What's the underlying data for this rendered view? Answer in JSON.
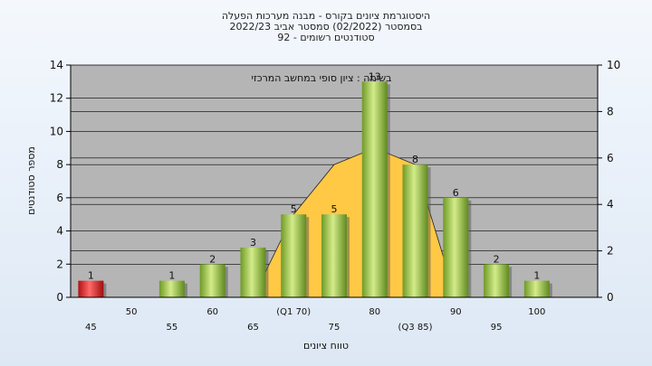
{
  "chart_data": {
    "type": "bar",
    "title_lines": [
      "היסטוגרמת ציונים בקורס - מבנה מערכות הפעלה",
      "בסמסטר  (02/2022)  סמסטר אביב 2022/23",
      "סטודנטים רשומים - 92"
    ],
    "xlabel": "טווח ציונים",
    "ylabel": "מספר סטודנטים",
    "annotation": "בשימה : ציון סופי במחשב המרכזי",
    "categories": [
      "45",
      "50",
      "55",
      "60",
      "65",
      "(Q1 70)",
      "75",
      "80",
      "(Q3 85)",
      "90",
      "95",
      "100"
    ],
    "values": [
      1,
      0,
      1,
      2,
      3,
      5,
      5,
      13,
      8,
      6,
      2,
      1
    ],
    "value_labels": [
      "1",
      "",
      "1",
      "2",
      "3",
      "5",
      "5",
      "13",
      "8",
      "6",
      "2",
      "1"
    ],
    "highlight_index": 0,
    "ylim": [
      0,
      14
    ],
    "yticks": [
      0,
      2,
      4,
      6,
      8,
      10,
      12,
      14
    ],
    "y2lim": [
      0,
      10
    ],
    "y2ticks": [
      0,
      2,
      4,
      6,
      8,
      10
    ],
    "area_series": [
      0,
      0,
      0,
      0,
      0,
      5,
      8,
      9,
      8,
      0,
      0,
      0
    ],
    "colors": {
      "plot_bg": "#b5b5b5",
      "bar_green": "#8bb83a",
      "bar_red": "#d42020",
      "area": "#ffc845",
      "grid": "#000000"
    },
    "grid": true
  }
}
